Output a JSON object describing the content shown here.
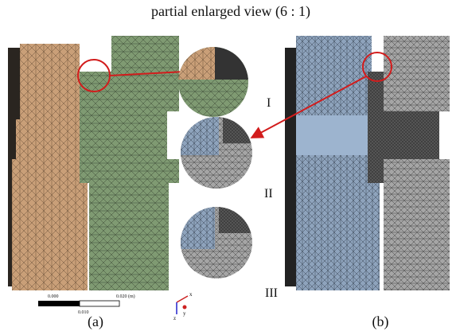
{
  "title": "partial enlarged view (6 : 1)",
  "panels": [
    {
      "label": "(a)"
    },
    {
      "label": "(b)"
    }
  ],
  "details": [
    {
      "label": "I"
    },
    {
      "label": "II"
    },
    {
      "label": "III"
    }
  ],
  "scale_bar": {
    "labels": [
      "0.000",
      "0.010",
      "0.020 (m)"
    ]
  },
  "axis_triad": [
    "x",
    "y",
    "z"
  ]
}
